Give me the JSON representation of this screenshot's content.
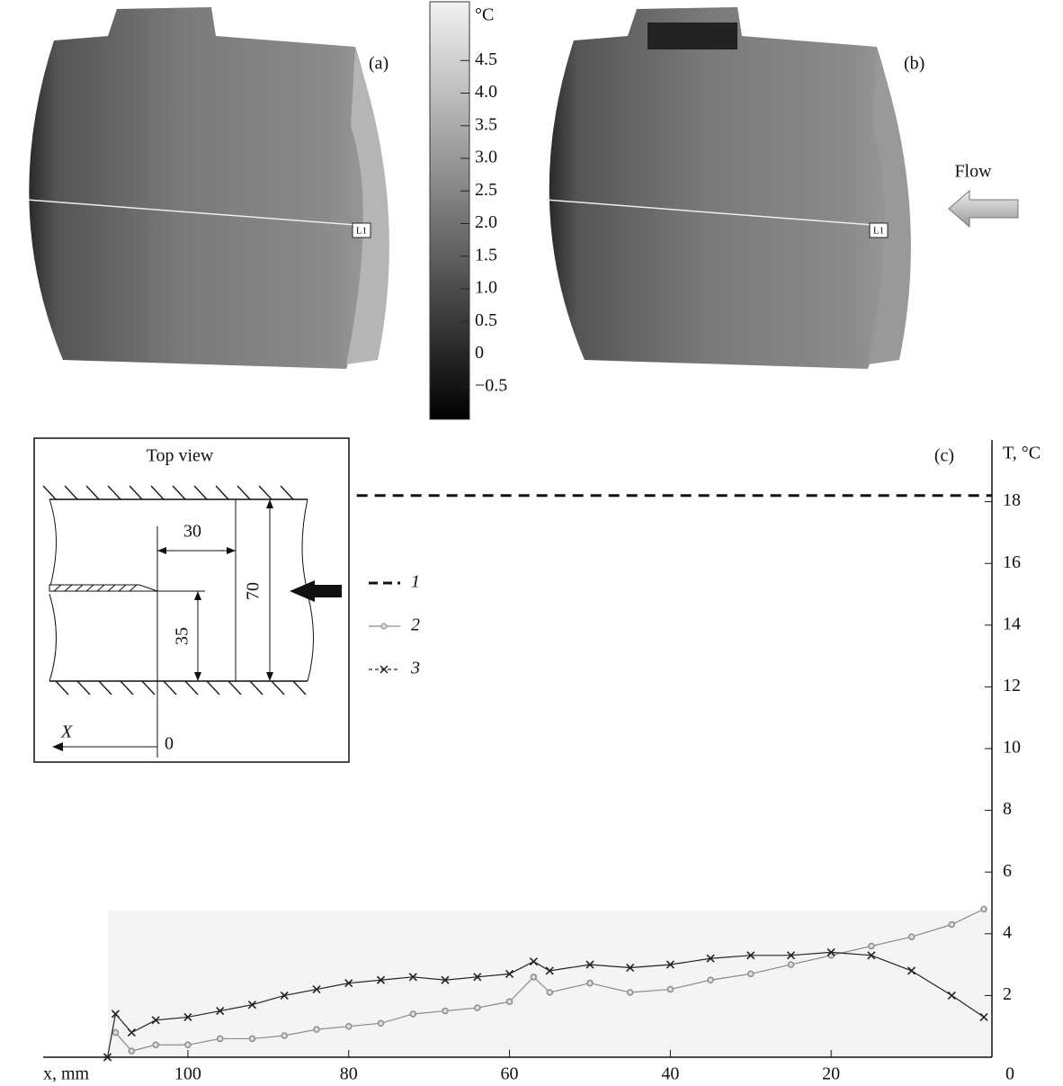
{
  "images": {
    "panels": [
      {
        "label": "(a)",
        "marker": "L1"
      },
      {
        "label": "(b)",
        "marker": "L1"
      }
    ],
    "flow": "Flow"
  },
  "colorbar": {
    "unit": "°C",
    "lim": [
      -1,
      5.4
    ],
    "ticks": [
      4.5,
      {
        "value": 4,
        "label": "4.0"
      },
      3.5,
      {
        "value": 3,
        "label": "3.0"
      },
      2.5,
      {
        "value": 2,
        "label": "2.0"
      },
      1.5,
      {
        "value": 1,
        "label": "1.0"
      },
      0.5,
      0,
      {
        "value": -0.5,
        "label": "−0.5"
      }
    ]
  },
  "inset": {
    "title": "Top view",
    "dims": [
      30,
      70,
      35
    ],
    "axis": "X",
    "origin": 0
  },
  "chart_data": {
    "type": "line",
    "panel": "(c)",
    "xlabel": "x, mm",
    "ylabel": "T, °C",
    "xlim": [
      118,
      0
    ],
    "ylim": [
      0,
      20
    ],
    "xticks": [
      100,
      80,
      60,
      40,
      20,
      0
    ],
    "yticks": [
      2,
      4,
      6,
      8,
      10,
      12,
      14,
      16,
      18
    ],
    "series": [
      {
        "name": "1",
        "color": "#111111",
        "style": "dashed",
        "x": [
          79,
          0
        ],
        "values": [
          18.2,
          18.2
        ]
      },
      {
        "name": "2",
        "color": "#8c8c8c",
        "marker": "circle",
        "x": [
          109,
          107,
          104,
          100,
          96,
          92,
          88,
          84,
          80,
          76,
          72,
          68,
          64,
          60,
          57,
          55,
          50,
          45,
          40,
          35,
          30,
          25,
          20,
          15,
          10,
          5,
          1
        ],
        "values": [
          0.8,
          0.2,
          0.4,
          0.4,
          0.6,
          0.6,
          0.7,
          0.9,
          1.0,
          1.1,
          1.4,
          1.5,
          1.6,
          1.8,
          2.6,
          2.1,
          2.4,
          2.1,
          2.2,
          2.5,
          2.7,
          3.0,
          3.3,
          3.6,
          3.9,
          4.3,
          4.8
        ]
      },
      {
        "name": "3",
        "color": "#222222",
        "marker": "x",
        "x": [
          110,
          109,
          107,
          104,
          100,
          96,
          92,
          88,
          84,
          80,
          76,
          72,
          68,
          64,
          60,
          57,
          55,
          50,
          45,
          40,
          35,
          30,
          25,
          20,
          15,
          10,
          5,
          1
        ],
        "values": [
          0,
          1.4,
          0.8,
          1.2,
          1.3,
          1.5,
          1.7,
          2.0,
          2.2,
          2.4,
          2.5,
          2.6,
          2.5,
          2.6,
          2.7,
          3.1,
          2.8,
          3.0,
          2.9,
          3.0,
          3.2,
          3.3,
          3.3,
          3.4,
          3.3,
          2.8,
          2.0,
          1.3
        ]
      }
    ]
  }
}
